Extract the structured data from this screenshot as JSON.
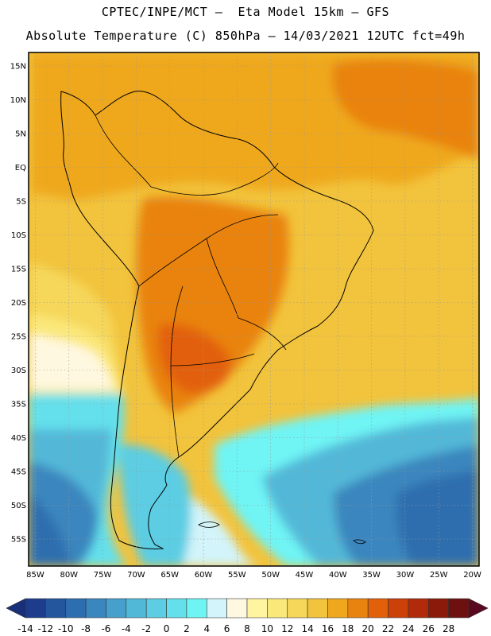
{
  "header": {
    "title_line1": "CPTEC/INPE/MCT –  Eta Model 15km – GFS",
    "title_line2": "Absolute Temperature (C) 850hPa – 14/03/2021 12UTC fct=49h"
  },
  "map": {
    "region": "South America",
    "field": "850hPa temperature",
    "lon_range": [
      -86,
      -19
    ],
    "lat_range": [
      -59,
      17
    ],
    "lat_labels": [
      "15N",
      "10N",
      "5N",
      "EQ",
      "5S",
      "10S",
      "15S",
      "20S",
      "25S",
      "30S",
      "35S",
      "40S",
      "45S",
      "50S",
      "55S"
    ],
    "lat_values": [
      15,
      10,
      5,
      0,
      -5,
      -10,
      -15,
      -20,
      -25,
      -30,
      -35,
      -40,
      -45,
      -50,
      -55
    ],
    "lon_labels": [
      "85W",
      "80W",
      "75W",
      "70W",
      "65W",
      "60W",
      "55W",
      "50W",
      "45W",
      "40W",
      "35W",
      "30W",
      "25W",
      "20W"
    ],
    "lon_values": [
      -85,
      -80,
      -75,
      -70,
      -65,
      -60,
      -55,
      -50,
      -45,
      -40,
      -35,
      -30,
      -25,
      -20
    ],
    "gridlines": "dotted"
  },
  "colorbar": {
    "labels": [
      "-14",
      "-12",
      "-10",
      "-8",
      "-6",
      "-4",
      "-2",
      "0",
      "2",
      "4",
      "6",
      "8",
      "10",
      "12",
      "14",
      "16",
      "18",
      "20",
      "22",
      "24",
      "26",
      "28"
    ],
    "colors": [
      "#1e3c8c",
      "#24569e",
      "#2d6eaf",
      "#3a86be",
      "#47a0cc",
      "#52b8d8",
      "#5ccde3",
      "#63e0ec",
      "#6ff4f4",
      "#d2f4fa",
      "#fff8e0",
      "#fff5a0",
      "#fbe87a",
      "#f6d75a",
      "#f2c33c",
      "#efa81e",
      "#e98310",
      "#e2600a",
      "#cc400a",
      "#b12a0a",
      "#8c1a0a",
      "#6e1010"
    ]
  }
}
